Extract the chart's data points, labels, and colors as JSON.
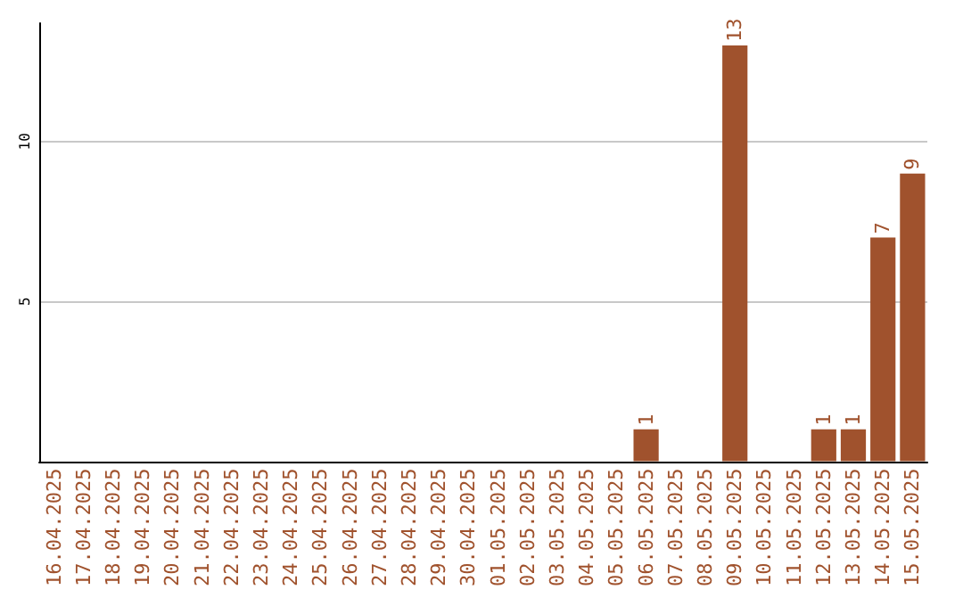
{
  "chart_data": {
    "type": "bar",
    "categories": [
      "16.04.2025",
      "17.04.2025",
      "18.04.2025",
      "19.04.2025",
      "20.04.2025",
      "21.04.2025",
      "22.04.2025",
      "23.04.2025",
      "24.04.2025",
      "25.04.2025",
      "26.04.2025",
      "27.04.2025",
      "28.04.2025",
      "29.04.2025",
      "30.04.2025",
      "01.05.2025",
      "02.05.2025",
      "03.05.2025",
      "04.05.2025",
      "05.05.2025",
      "06.05.2025",
      "07.05.2025",
      "08.05.2025",
      "09.05.2025",
      "10.05.2025",
      "11.05.2025",
      "12.05.2025",
      "13.05.2025",
      "14.05.2025",
      "15.05.2025"
    ],
    "values": [
      0,
      0,
      0,
      0,
      0,
      0,
      0,
      0,
      0,
      0,
      0,
      0,
      0,
      0,
      0,
      0,
      0,
      0,
      0,
      0,
      1,
      0,
      0,
      13,
      0,
      0,
      1,
      1,
      7,
      9
    ],
    "value_labels": [
      null,
      null,
      null,
      null,
      null,
      null,
      null,
      null,
      null,
      null,
      null,
      null,
      null,
      null,
      null,
      null,
      null,
      null,
      null,
      null,
      "1",
      null,
      null,
      "13",
      null,
      null,
      "1",
      "1",
      "7",
      "9"
    ],
    "color": "#a0522d",
    "ylim": [
      0,
      13.7
    ],
    "yticks": [
      5,
      10
    ],
    "grid": "y"
  }
}
